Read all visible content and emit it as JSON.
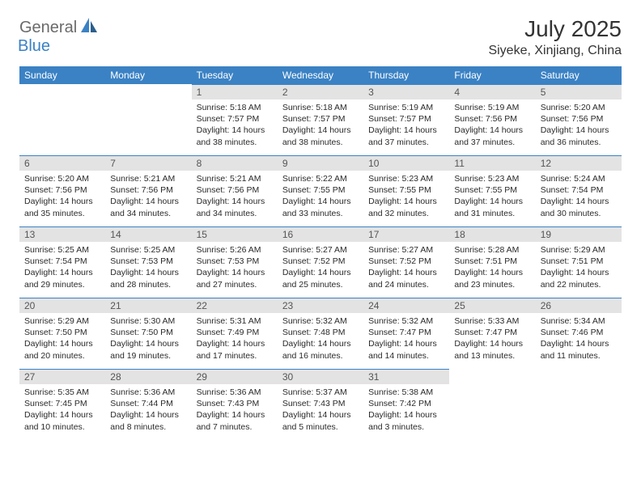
{
  "logo": {
    "part1": "General",
    "part2": "Blue"
  },
  "title": "July 2025",
  "location": "Siyeke, Xinjiang, China",
  "colors": {
    "header_bg": "#3b82c4",
    "header_text": "#ffffff",
    "daynum_bg": "#e3e3e3",
    "daynum_text": "#555555",
    "border": "#3b82c4",
    "body_text": "#2a2a2a",
    "logo_gray": "#6a6a6a",
    "logo_blue": "#3b82c4"
  },
  "weekdays": [
    "Sunday",
    "Monday",
    "Tuesday",
    "Wednesday",
    "Thursday",
    "Friday",
    "Saturday"
  ],
  "weeks": [
    [
      null,
      null,
      {
        "n": "1",
        "sr": "5:18 AM",
        "ss": "7:57 PM",
        "dl": "14 hours and 38 minutes."
      },
      {
        "n": "2",
        "sr": "5:18 AM",
        "ss": "7:57 PM",
        "dl": "14 hours and 38 minutes."
      },
      {
        "n": "3",
        "sr": "5:19 AM",
        "ss": "7:57 PM",
        "dl": "14 hours and 37 minutes."
      },
      {
        "n": "4",
        "sr": "5:19 AM",
        "ss": "7:56 PM",
        "dl": "14 hours and 37 minutes."
      },
      {
        "n": "5",
        "sr": "5:20 AM",
        "ss": "7:56 PM",
        "dl": "14 hours and 36 minutes."
      }
    ],
    [
      {
        "n": "6",
        "sr": "5:20 AM",
        "ss": "7:56 PM",
        "dl": "14 hours and 35 minutes."
      },
      {
        "n": "7",
        "sr": "5:21 AM",
        "ss": "7:56 PM",
        "dl": "14 hours and 34 minutes."
      },
      {
        "n": "8",
        "sr": "5:21 AM",
        "ss": "7:56 PM",
        "dl": "14 hours and 34 minutes."
      },
      {
        "n": "9",
        "sr": "5:22 AM",
        "ss": "7:55 PM",
        "dl": "14 hours and 33 minutes."
      },
      {
        "n": "10",
        "sr": "5:23 AM",
        "ss": "7:55 PM",
        "dl": "14 hours and 32 minutes."
      },
      {
        "n": "11",
        "sr": "5:23 AM",
        "ss": "7:55 PM",
        "dl": "14 hours and 31 minutes."
      },
      {
        "n": "12",
        "sr": "5:24 AM",
        "ss": "7:54 PM",
        "dl": "14 hours and 30 minutes."
      }
    ],
    [
      {
        "n": "13",
        "sr": "5:25 AM",
        "ss": "7:54 PM",
        "dl": "14 hours and 29 minutes."
      },
      {
        "n": "14",
        "sr": "5:25 AM",
        "ss": "7:53 PM",
        "dl": "14 hours and 28 minutes."
      },
      {
        "n": "15",
        "sr": "5:26 AM",
        "ss": "7:53 PM",
        "dl": "14 hours and 27 minutes."
      },
      {
        "n": "16",
        "sr": "5:27 AM",
        "ss": "7:52 PM",
        "dl": "14 hours and 25 minutes."
      },
      {
        "n": "17",
        "sr": "5:27 AM",
        "ss": "7:52 PM",
        "dl": "14 hours and 24 minutes."
      },
      {
        "n": "18",
        "sr": "5:28 AM",
        "ss": "7:51 PM",
        "dl": "14 hours and 23 minutes."
      },
      {
        "n": "19",
        "sr": "5:29 AM",
        "ss": "7:51 PM",
        "dl": "14 hours and 22 minutes."
      }
    ],
    [
      {
        "n": "20",
        "sr": "5:29 AM",
        "ss": "7:50 PM",
        "dl": "14 hours and 20 minutes."
      },
      {
        "n": "21",
        "sr": "5:30 AM",
        "ss": "7:50 PM",
        "dl": "14 hours and 19 minutes."
      },
      {
        "n": "22",
        "sr": "5:31 AM",
        "ss": "7:49 PM",
        "dl": "14 hours and 17 minutes."
      },
      {
        "n": "23",
        "sr": "5:32 AM",
        "ss": "7:48 PM",
        "dl": "14 hours and 16 minutes."
      },
      {
        "n": "24",
        "sr": "5:32 AM",
        "ss": "7:47 PM",
        "dl": "14 hours and 14 minutes."
      },
      {
        "n": "25",
        "sr": "5:33 AM",
        "ss": "7:47 PM",
        "dl": "14 hours and 13 minutes."
      },
      {
        "n": "26",
        "sr": "5:34 AM",
        "ss": "7:46 PM",
        "dl": "14 hours and 11 minutes."
      }
    ],
    [
      {
        "n": "27",
        "sr": "5:35 AM",
        "ss": "7:45 PM",
        "dl": "14 hours and 10 minutes."
      },
      {
        "n": "28",
        "sr": "5:36 AM",
        "ss": "7:44 PM",
        "dl": "14 hours and 8 minutes."
      },
      {
        "n": "29",
        "sr": "5:36 AM",
        "ss": "7:43 PM",
        "dl": "14 hours and 7 minutes."
      },
      {
        "n": "30",
        "sr": "5:37 AM",
        "ss": "7:43 PM",
        "dl": "14 hours and 5 minutes."
      },
      {
        "n": "31",
        "sr": "5:38 AM",
        "ss": "7:42 PM",
        "dl": "14 hours and 3 minutes."
      },
      null,
      null
    ]
  ],
  "labels": {
    "sunrise": "Sunrise:",
    "sunset": "Sunset:",
    "daylight": "Daylight:"
  }
}
